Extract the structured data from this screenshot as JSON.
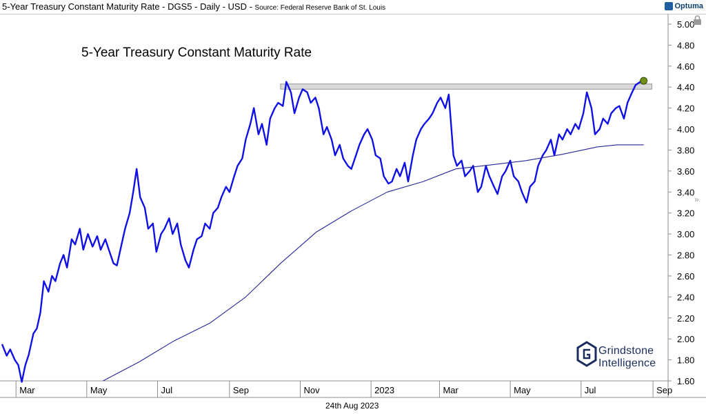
{
  "header": {
    "title": "5-Year Treasury Constant Maturity Rate - DGS5 - Daily - USD",
    "source": "Source: Federal Reserve Bank of St. Louis",
    "brand": "Optuma"
  },
  "footer": {
    "date": "24th Aug 2023"
  },
  "logo": {
    "line1": "Grindstone",
    "line2": "Intelligence"
  },
  "colors": {
    "price": "#1010e6",
    "ma": "#24249a",
    "resistance_fill": "#d9d9d9",
    "marker": "#6f8f1a"
  },
  "chart_data": {
    "type": "line",
    "title": "5-Year Treasury Constant Maturity Rate",
    "xlabel": "",
    "ylabel": "",
    "ylim": [
      1.6,
      5.0
    ],
    "grid": false,
    "y_ticks": [
      "5.00",
      "4.80",
      "4.60",
      "4.40",
      "4.20",
      "4.00",
      "3.80",
      "3.60",
      "3.40",
      "3.20",
      "3.00",
      "2.80",
      "2.60",
      "2.40",
      "2.20",
      "2.00",
      "1.80",
      "1.60"
    ],
    "x_ticks": [
      {
        "label": "Mar",
        "x": "2022-03-01"
      },
      {
        "label": "May",
        "x": "2022-05-01"
      },
      {
        "label": "Jul",
        "x": "2022-07-01"
      },
      {
        "label": "Sep",
        "x": "2022-09-01"
      },
      {
        "label": "Nov",
        "x": "2022-11-01"
      },
      {
        "label": "2023",
        "x": "2023-01-01"
      },
      {
        "label": "Mar",
        "x": "2023-03-01"
      },
      {
        "label": "May",
        "x": "2023-05-01"
      },
      {
        "label": "Jul",
        "x": "2023-07-01"
      },
      {
        "label": "Sep",
        "x": "2023-09-01"
      }
    ],
    "xlim": [
      "2022-02-17",
      "2023-09-14"
    ],
    "series": [
      {
        "values": [
          {
            "x": "2022-02-17",
            "y": 1.95
          },
          {
            "x": "2022-02-21",
            "y": 1.84
          },
          {
            "x": "2022-02-24",
            "y": 1.9
          },
          {
            "x": "2022-02-28",
            "y": 1.8
          },
          {
            "x": "2022-03-03",
            "y": 1.75
          },
          {
            "x": "2022-03-06",
            "y": 1.59
          },
          {
            "x": "2022-03-09",
            "y": 1.75
          },
          {
            "x": "2022-03-12",
            "y": 1.85
          },
          {
            "x": "2022-03-16",
            "y": 2.05
          },
          {
            "x": "2022-03-19",
            "y": 2.1
          },
          {
            "x": "2022-03-22",
            "y": 2.25
          },
          {
            "x": "2022-03-25",
            "y": 2.55
          },
          {
            "x": "2022-03-29",
            "y": 2.45
          },
          {
            "x": "2022-04-01",
            "y": 2.6
          },
          {
            "x": "2022-04-04",
            "y": 2.55
          },
          {
            "x": "2022-04-08",
            "y": 2.72
          },
          {
            "x": "2022-04-11",
            "y": 2.8
          },
          {
            "x": "2022-04-14",
            "y": 2.68
          },
          {
            "x": "2022-04-18",
            "y": 2.95
          },
          {
            "x": "2022-04-21",
            "y": 2.9
          },
          {
            "x": "2022-04-25",
            "y": 3.05
          },
          {
            "x": "2022-04-28",
            "y": 2.85
          },
          {
            "x": "2022-05-02",
            "y": 3.0
          },
          {
            "x": "2022-05-06",
            "y": 2.88
          },
          {
            "x": "2022-05-10",
            "y": 2.98
          },
          {
            "x": "2022-05-13",
            "y": 2.85
          },
          {
            "x": "2022-05-17",
            "y": 2.95
          },
          {
            "x": "2022-05-20",
            "y": 2.85
          },
          {
            "x": "2022-05-24",
            "y": 2.72
          },
          {
            "x": "2022-05-27",
            "y": 2.7
          },
          {
            "x": "2022-05-31",
            "y": 2.9
          },
          {
            "x": "2022-06-03",
            "y": 3.05
          },
          {
            "x": "2022-06-07",
            "y": 3.2
          },
          {
            "x": "2022-06-10",
            "y": 3.4
          },
          {
            "x": "2022-06-13",
            "y": 3.62
          },
          {
            "x": "2022-06-16",
            "y": 3.35
          },
          {
            "x": "2022-06-20",
            "y": 3.25
          },
          {
            "x": "2022-06-23",
            "y": 3.05
          },
          {
            "x": "2022-06-27",
            "y": 3.1
          },
          {
            "x": "2022-06-30",
            "y": 2.83
          },
          {
            "x": "2022-07-04",
            "y": 3.0
          },
          {
            "x": "2022-07-07",
            "y": 3.05
          },
          {
            "x": "2022-07-11",
            "y": 3.15
          },
          {
            "x": "2022-07-14",
            "y": 3.0
          },
          {
            "x": "2022-07-18",
            "y": 3.1
          },
          {
            "x": "2022-07-21",
            "y": 2.9
          },
          {
            "x": "2022-07-25",
            "y": 2.75
          },
          {
            "x": "2022-07-28",
            "y": 2.68
          },
          {
            "x": "2022-08-01",
            "y": 2.85
          },
          {
            "x": "2022-08-04",
            "y": 2.95
          },
          {
            "x": "2022-08-08",
            "y": 2.98
          },
          {
            "x": "2022-08-11",
            "y": 3.1
          },
          {
            "x": "2022-08-15",
            "y": 3.05
          },
          {
            "x": "2022-08-18",
            "y": 3.2
          },
          {
            "x": "2022-08-22",
            "y": 3.25
          },
          {
            "x": "2022-08-25",
            "y": 3.35
          },
          {
            "x": "2022-08-29",
            "y": 3.45
          },
          {
            "x": "2022-09-01",
            "y": 3.4
          },
          {
            "x": "2022-09-05",
            "y": 3.55
          },
          {
            "x": "2022-09-08",
            "y": 3.65
          },
          {
            "x": "2022-09-12",
            "y": 3.72
          },
          {
            "x": "2022-09-15",
            "y": 3.9
          },
          {
            "x": "2022-09-19",
            "y": 4.05
          },
          {
            "x": "2022-09-22",
            "y": 4.2
          },
          {
            "x": "2022-09-26",
            "y": 3.95
          },
          {
            "x": "2022-09-29",
            "y": 4.05
          },
          {
            "x": "2022-10-03",
            "y": 3.85
          },
          {
            "x": "2022-10-06",
            "y": 4.1
          },
          {
            "x": "2022-10-10",
            "y": 4.2
          },
          {
            "x": "2022-10-13",
            "y": 4.25
          },
          {
            "x": "2022-10-17",
            "y": 4.22
          },
          {
            "x": "2022-10-20",
            "y": 4.45
          },
          {
            "x": "2022-10-24",
            "y": 4.35
          },
          {
            "x": "2022-10-27",
            "y": 4.15
          },
          {
            "x": "2022-10-31",
            "y": 4.3
          },
          {
            "x": "2022-11-03",
            "y": 4.38
          },
          {
            "x": "2022-11-07",
            "y": 4.35
          },
          {
            "x": "2022-11-10",
            "y": 4.25
          },
          {
            "x": "2022-11-14",
            "y": 4.3
          },
          {
            "x": "2022-11-17",
            "y": 4.2
          },
          {
            "x": "2022-11-21",
            "y": 3.95
          },
          {
            "x": "2022-11-24",
            "y": 4.02
          },
          {
            "x": "2022-11-28",
            "y": 3.9
          },
          {
            "x": "2022-12-01",
            "y": 3.75
          },
          {
            "x": "2022-12-05",
            "y": 3.85
          },
          {
            "x": "2022-12-08",
            "y": 3.72
          },
          {
            "x": "2022-12-12",
            "y": 3.65
          },
          {
            "x": "2022-12-15",
            "y": 3.62
          },
          {
            "x": "2022-12-19",
            "y": 3.75
          },
          {
            "x": "2022-12-22",
            "y": 3.85
          },
          {
            "x": "2022-12-26",
            "y": 3.95
          },
          {
            "x": "2022-12-29",
            "y": 4.0
          },
          {
            "x": "2023-01-02",
            "y": 3.9
          },
          {
            "x": "2023-01-05",
            "y": 3.75
          },
          {
            "x": "2023-01-09",
            "y": 3.72
          },
          {
            "x": "2023-01-12",
            "y": 3.55
          },
          {
            "x": "2023-01-16",
            "y": 3.48
          },
          {
            "x": "2023-01-19",
            "y": 3.5
          },
          {
            "x": "2023-01-23",
            "y": 3.62
          },
          {
            "x": "2023-01-26",
            "y": 3.55
          },
          {
            "x": "2023-01-30",
            "y": 3.68
          },
          {
            "x": "2023-02-02",
            "y": 3.5
          },
          {
            "x": "2023-02-06",
            "y": 3.75
          },
          {
            "x": "2023-02-09",
            "y": 3.9
          },
          {
            "x": "2023-02-13",
            "y": 4.0
          },
          {
            "x": "2023-02-16",
            "y": 4.05
          },
          {
            "x": "2023-02-20",
            "y": 4.1
          },
          {
            "x": "2023-02-23",
            "y": 4.15
          },
          {
            "x": "2023-02-27",
            "y": 4.25
          },
          {
            "x": "2023-03-02",
            "y": 4.3
          },
          {
            "x": "2023-03-06",
            "y": 4.2
          },
          {
            "x": "2023-03-09",
            "y": 4.33
          },
          {
            "x": "2023-03-13",
            "y": 3.75
          },
          {
            "x": "2023-03-16",
            "y": 3.65
          },
          {
            "x": "2023-03-20",
            "y": 3.7
          },
          {
            "x": "2023-03-23",
            "y": 3.55
          },
          {
            "x": "2023-03-27",
            "y": 3.6
          },
          {
            "x": "2023-03-30",
            "y": 3.65
          },
          {
            "x": "2023-04-03",
            "y": 3.4
          },
          {
            "x": "2023-04-06",
            "y": 3.45
          },
          {
            "x": "2023-04-10",
            "y": 3.65
          },
          {
            "x": "2023-04-13",
            "y": 3.55
          },
          {
            "x": "2023-04-17",
            "y": 3.45
          },
          {
            "x": "2023-04-20",
            "y": 3.38
          },
          {
            "x": "2023-04-24",
            "y": 3.55
          },
          {
            "x": "2023-04-27",
            "y": 3.6
          },
          {
            "x": "2023-05-01",
            "y": 3.7
          },
          {
            "x": "2023-05-04",
            "y": 3.55
          },
          {
            "x": "2023-05-08",
            "y": 3.5
          },
          {
            "x": "2023-05-11",
            "y": 3.4
          },
          {
            "x": "2023-05-15",
            "y": 3.3
          },
          {
            "x": "2023-05-18",
            "y": 3.45
          },
          {
            "x": "2023-05-22",
            "y": 3.5
          },
          {
            "x": "2023-05-25",
            "y": 3.65
          },
          {
            "x": "2023-05-29",
            "y": 3.75
          },
          {
            "x": "2023-06-01",
            "y": 3.8
          },
          {
            "x": "2023-06-05",
            "y": 3.9
          },
          {
            "x": "2023-06-08",
            "y": 3.75
          },
          {
            "x": "2023-06-12",
            "y": 3.95
          },
          {
            "x": "2023-06-15",
            "y": 3.9
          },
          {
            "x": "2023-06-19",
            "y": 4.0
          },
          {
            "x": "2023-06-22",
            "y": 3.95
          },
          {
            "x": "2023-06-26",
            "y": 4.05
          },
          {
            "x": "2023-06-29",
            "y": 4.0
          },
          {
            "x": "2023-07-03",
            "y": 4.15
          },
          {
            "x": "2023-07-06",
            "y": 4.35
          },
          {
            "x": "2023-07-10",
            "y": 4.2
          },
          {
            "x": "2023-07-13",
            "y": 3.95
          },
          {
            "x": "2023-07-17",
            "y": 4.0
          },
          {
            "x": "2023-07-20",
            "y": 4.1
          },
          {
            "x": "2023-07-24",
            "y": 4.05
          },
          {
            "x": "2023-07-27",
            "y": 4.15
          },
          {
            "x": "2023-07-31",
            "y": 4.2
          },
          {
            "x": "2023-08-03",
            "y": 4.22
          },
          {
            "x": "2023-08-07",
            "y": 4.1
          },
          {
            "x": "2023-08-10",
            "y": 4.25
          },
          {
            "x": "2023-08-14",
            "y": 4.35
          },
          {
            "x": "2023-08-17",
            "y": 4.42
          },
          {
            "x": "2023-08-21",
            "y": 4.45
          },
          {
            "x": "2023-08-24",
            "y": 4.43
          }
        ]
      },
      {
        "values": [
          {
            "x": "2022-05-15",
            "y": 1.6
          },
          {
            "x": "2022-06-15",
            "y": 1.78
          },
          {
            "x": "2022-07-15",
            "y": 1.98
          },
          {
            "x": "2022-08-15",
            "y": 2.15
          },
          {
            "x": "2022-09-15",
            "y": 2.4
          },
          {
            "x": "2022-10-15",
            "y": 2.72
          },
          {
            "x": "2022-11-15",
            "y": 3.02
          },
          {
            "x": "2022-12-15",
            "y": 3.22
          },
          {
            "x": "2023-01-15",
            "y": 3.4
          },
          {
            "x": "2023-02-15",
            "y": 3.5
          },
          {
            "x": "2023-03-15",
            "y": 3.62
          },
          {
            "x": "2023-04-15",
            "y": 3.66
          },
          {
            "x": "2023-05-15",
            "y": 3.7
          },
          {
            "x": "2023-06-15",
            "y": 3.76
          },
          {
            "x": "2023-07-15",
            "y": 3.83
          },
          {
            "x": "2023-08-01",
            "y": 3.85
          },
          {
            "x": "2023-08-24",
            "y": 3.85
          }
        ]
      }
    ],
    "resistance_band": {
      "y": [
        4.38,
        4.43
      ],
      "x": [
        "2022-10-15",
        "2023-08-31"
      ]
    },
    "marker": {
      "x": "2023-08-24",
      "y": 4.46
    }
  }
}
